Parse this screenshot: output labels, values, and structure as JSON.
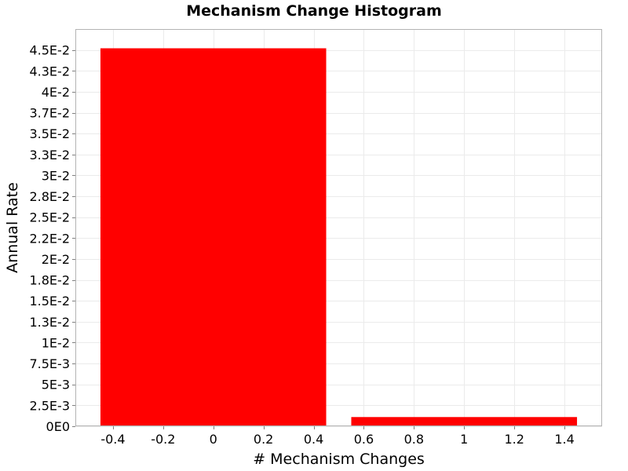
{
  "chart_data": {
    "type": "bar",
    "title": "Mechanism Change Histogram",
    "xlabel": "# Mechanism Changes",
    "ylabel": "Annual Rate",
    "xlim": [
      -0.55,
      1.55
    ],
    "ylim": [
      0,
      0.0475
    ],
    "x_ticks": [
      -0.4,
      -0.2,
      0,
      0.2,
      0.4,
      0.6,
      0.8,
      1,
      1.2,
      1.4
    ],
    "x_tick_labels": [
      "-0.4",
      "-0.2",
      "0",
      "0.2",
      "0.4",
      "0.6",
      "0.8",
      "1",
      "1.2",
      "1.4"
    ],
    "y_ticks": [
      0,
      0.0025,
      0.005,
      0.0075,
      0.01,
      0.0125,
      0.015,
      0.0175,
      0.02,
      0.0225,
      0.025,
      0.0275,
      0.03,
      0.0325,
      0.035,
      0.0375,
      0.04,
      0.0425,
      0.045
    ],
    "y_tick_labels": [
      "0E0",
      "2.5E-3",
      "5E-3",
      "7.5E-3",
      "1E-2",
      "1.3E-2",
      "1.5E-2",
      "1.8E-2",
      "2E-2",
      "2.2E-2",
      "2.5E-2",
      "2.8E-2",
      "3E-2",
      "3.3E-2",
      "3.5E-2",
      "3.7E-2",
      "4E-2",
      "4.3E-2",
      "4.5E-2"
    ],
    "bars": [
      {
        "x": 0,
        "value": 0.0452
      },
      {
        "x": 1,
        "value": 0.0011
      }
    ],
    "bar_width": 0.9,
    "bar_color": "#ff0000",
    "grid": true,
    "grid_color": "#ebebeb",
    "axis_color": "#b4b4b4"
  }
}
